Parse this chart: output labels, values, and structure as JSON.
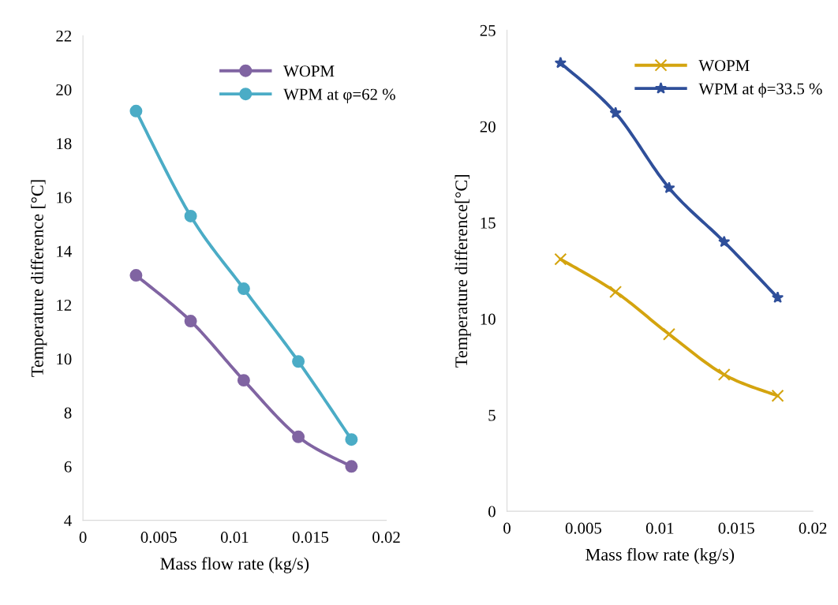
{
  "chart_data": [
    {
      "type": "line",
      "xlabel": "Mass flow rate (kg/s)",
      "ylabel": "Temperature difference [°C]",
      "x": [
        0.0035,
        0.0071,
        0.0106,
        0.0142,
        0.0177
      ],
      "series": [
        {
          "name": "WOPM",
          "color": "#8064a2",
          "marker": "circle",
          "values": [
            13.1,
            11.4,
            9.2,
            7.1,
            6.0
          ]
        },
        {
          "name": "WPM at φ=62 %",
          "color": "#4bacc6",
          "marker": "circle",
          "values": [
            19.2,
            15.3,
            12.6,
            9.9,
            7.0
          ]
        }
      ],
      "xlim": [
        0,
        0.02
      ],
      "xticks": [
        0,
        0.005,
        0.01,
        0.015,
        0.02
      ],
      "ylim": [
        4,
        22
      ],
      "yticks": [
        4,
        6,
        8,
        10,
        12,
        14,
        16,
        18,
        20,
        22
      ],
      "grid": false,
      "legend": "top right"
    },
    {
      "type": "line",
      "xlabel": "Mass flow rate (kg/s)",
      "ylabel": "Temperature difference[°C]",
      "x": [
        0.0035,
        0.0071,
        0.0106,
        0.0142,
        0.0177
      ],
      "series": [
        {
          "name": "WOPM",
          "color": "#d4a40f",
          "marker": "cross",
          "values": [
            13.1,
            11.4,
            9.2,
            7.1,
            6.0
          ]
        },
        {
          "name": "WPM at ϕ=33.5 %",
          "color": "#2f4f9a",
          "marker": "star",
          "values": [
            23.3,
            20.7,
            16.8,
            14.0,
            11.1
          ]
        }
      ],
      "xlim": [
        0,
        0.02
      ],
      "xticks": [
        0,
        0.005,
        0.01,
        0.015,
        0.02
      ],
      "ylim": [
        0,
        25
      ],
      "yticks": [
        0,
        5,
        10,
        15,
        20,
        25
      ],
      "grid": false,
      "legend": "top right"
    }
  ]
}
